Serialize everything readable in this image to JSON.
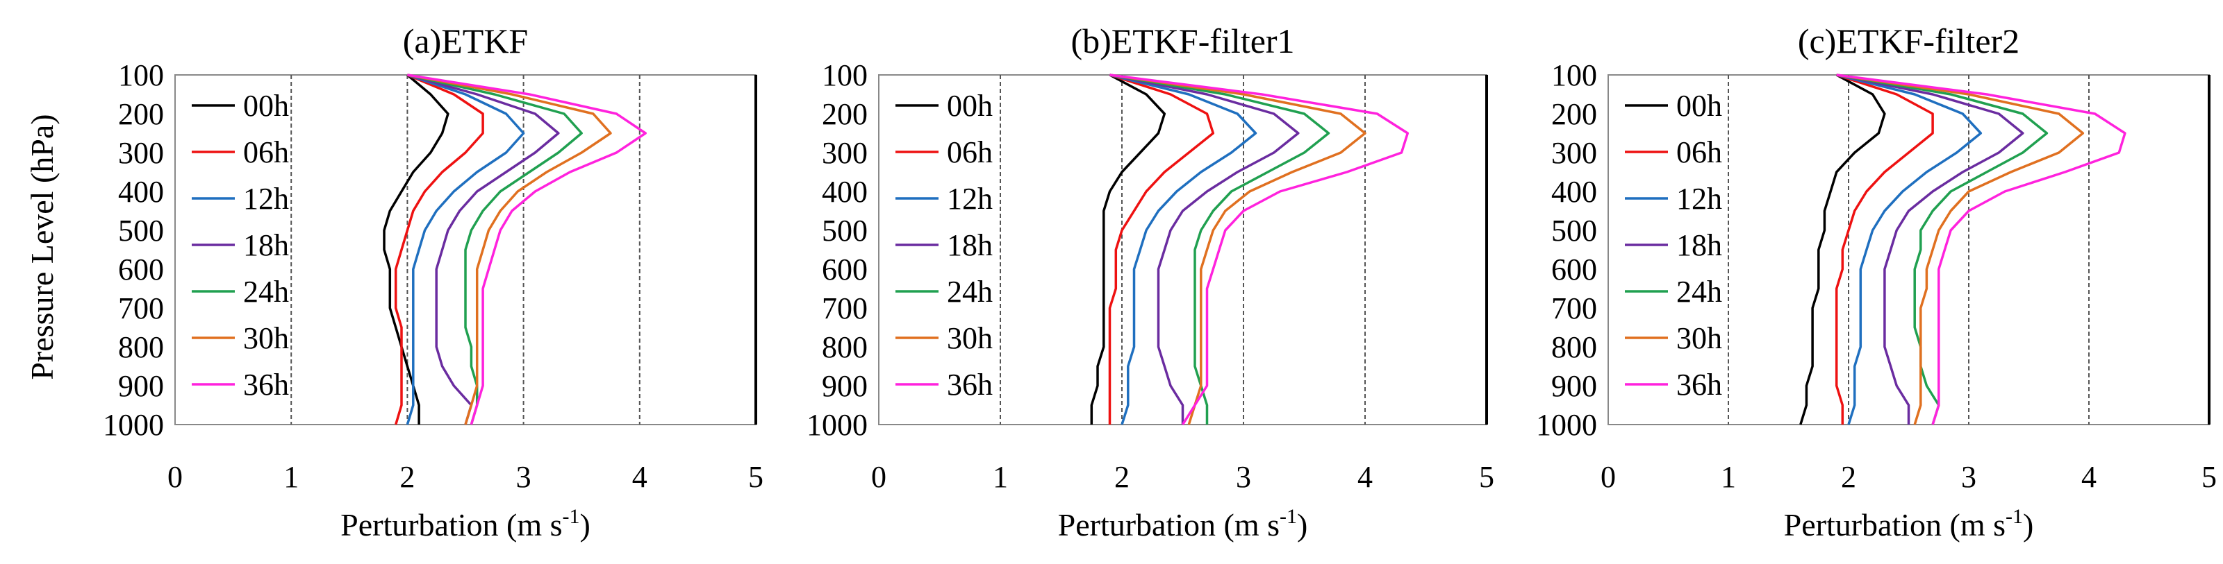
{
  "figure": {
    "y_axis_label": "Pressure Level (hPa)"
  },
  "chart_data": [
    {
      "type": "line",
      "title": "(a)ETKF",
      "xlabel_main": "Perturbation (m s",
      "xlabel_sup": "-1",
      "xlabel_close": ")",
      "ylabel": "Pressure Level (hPa)",
      "xlim": [
        0,
        5
      ],
      "ylim": [
        100,
        1000
      ],
      "x_ticks": [
        "0",
        "1",
        "2",
        "3",
        "4",
        "5"
      ],
      "y_ticks": [
        "100",
        "200",
        "300",
        "400",
        "500",
        "600",
        "700",
        "800",
        "900",
        "1000"
      ],
      "y": [
        100,
        150,
        200,
        250,
        300,
        350,
        400,
        450,
        500,
        550,
        600,
        650,
        700,
        750,
        800,
        850,
        900,
        950,
        1000
      ],
      "series": [
        {
          "name": "00h",
          "color": "#000000",
          "values": [
            2.0,
            2.2,
            2.35,
            2.3,
            2.2,
            2.05,
            1.95,
            1.85,
            1.8,
            1.8,
            1.85,
            1.85,
            1.85,
            1.9,
            1.95,
            2.0,
            2.05,
            2.1,
            2.1
          ]
        },
        {
          "name": "06h",
          "color": "#ee1111",
          "values": [
            2.0,
            2.4,
            2.65,
            2.65,
            2.5,
            2.3,
            2.15,
            2.05,
            2.0,
            1.95,
            1.9,
            1.9,
            1.9,
            1.95,
            1.95,
            1.95,
            1.95,
            1.95,
            1.9
          ]
        },
        {
          "name": "12h",
          "color": "#1f6fbf",
          "values": [
            2.0,
            2.5,
            2.85,
            3.0,
            2.85,
            2.6,
            2.4,
            2.25,
            2.15,
            2.1,
            2.05,
            2.05,
            2.05,
            2.05,
            2.05,
            2.05,
            2.05,
            2.05,
            2.0
          ]
        },
        {
          "name": "18h",
          "color": "#6a2ca0",
          "values": [
            2.0,
            2.6,
            3.1,
            3.3,
            3.1,
            2.85,
            2.6,
            2.45,
            2.35,
            2.3,
            2.25,
            2.25,
            2.25,
            2.25,
            2.25,
            2.3,
            2.4,
            2.55,
            2.5
          ]
        },
        {
          "name": "24h",
          "color": "#20a050",
          "values": [
            2.0,
            2.75,
            3.35,
            3.5,
            3.3,
            3.05,
            2.8,
            2.65,
            2.55,
            2.5,
            2.5,
            2.5,
            2.5,
            2.5,
            2.55,
            2.55,
            2.6,
            2.6,
            2.55
          ]
        },
        {
          "name": "30h",
          "color": "#e07020",
          "values": [
            2.0,
            2.9,
            3.6,
            3.75,
            3.5,
            3.2,
            2.95,
            2.8,
            2.7,
            2.65,
            2.6,
            2.6,
            2.6,
            2.6,
            2.6,
            2.6,
            2.6,
            2.55,
            2.5
          ]
        },
        {
          "name": "36h",
          "color": "#ff22dd",
          "values": [
            2.0,
            3.05,
            3.8,
            4.05,
            3.8,
            3.4,
            3.1,
            2.9,
            2.8,
            2.75,
            2.7,
            2.65,
            2.65,
            2.65,
            2.65,
            2.65,
            2.65,
            2.6,
            2.55
          ]
        }
      ]
    },
    {
      "type": "line",
      "title": "(b)ETKF-filter1",
      "xlabel_main": "Perturbation (m s",
      "xlabel_sup": "-1",
      "xlabel_close": ")",
      "ylabel": "Pressure Level (hPa)",
      "xlim": [
        0,
        5
      ],
      "ylim": [
        100,
        1000
      ],
      "x_ticks": [
        "0",
        "1",
        "2",
        "3",
        "4",
        "5"
      ],
      "y_ticks": [
        "100",
        "200",
        "300",
        "400",
        "500",
        "600",
        "700",
        "800",
        "900",
        "1000"
      ],
      "y": [
        100,
        150,
        200,
        250,
        300,
        350,
        400,
        450,
        500,
        550,
        600,
        650,
        700,
        750,
        800,
        850,
        900,
        950,
        1000
      ],
      "series": [
        {
          "name": "00h",
          "color": "#000000",
          "values": [
            1.9,
            2.2,
            2.35,
            2.3,
            2.15,
            2.0,
            1.9,
            1.85,
            1.85,
            1.85,
            1.85,
            1.85,
            1.85,
            1.85,
            1.85,
            1.8,
            1.8,
            1.75,
            1.75
          ]
        },
        {
          "name": "06h",
          "color": "#ee1111",
          "values": [
            1.9,
            2.4,
            2.7,
            2.75,
            2.55,
            2.35,
            2.2,
            2.1,
            2.0,
            1.95,
            1.95,
            1.95,
            1.9,
            1.9,
            1.9,
            1.9,
            1.9,
            1.9,
            1.9
          ]
        },
        {
          "name": "12h",
          "color": "#1f6fbf",
          "values": [
            1.9,
            2.55,
            2.95,
            3.1,
            2.9,
            2.65,
            2.45,
            2.3,
            2.2,
            2.15,
            2.1,
            2.1,
            2.1,
            2.1,
            2.1,
            2.05,
            2.05,
            2.05,
            2.0
          ]
        },
        {
          "name": "18h",
          "color": "#6a2ca0",
          "values": [
            1.9,
            2.7,
            3.25,
            3.45,
            3.25,
            2.95,
            2.7,
            2.5,
            2.4,
            2.35,
            2.3,
            2.3,
            2.3,
            2.3,
            2.3,
            2.35,
            2.4,
            2.5,
            2.5
          ]
        },
        {
          "name": "24h",
          "color": "#20a050",
          "values": [
            1.9,
            2.85,
            3.5,
            3.7,
            3.5,
            3.2,
            2.9,
            2.75,
            2.65,
            2.6,
            2.6,
            2.6,
            2.6,
            2.6,
            2.6,
            2.6,
            2.65,
            2.7,
            2.7
          ]
        },
        {
          "name": "30h",
          "color": "#e07020",
          "values": [
            1.9,
            3.0,
            3.8,
            4.0,
            3.8,
            3.4,
            3.05,
            2.85,
            2.75,
            2.7,
            2.65,
            2.65,
            2.65,
            2.65,
            2.65,
            2.65,
            2.65,
            2.6,
            2.55
          ]
        },
        {
          "name": "36h",
          "color": "#ff22dd",
          "values": [
            1.9,
            3.15,
            4.1,
            4.35,
            4.3,
            3.85,
            3.3,
            3.0,
            2.85,
            2.8,
            2.75,
            2.7,
            2.7,
            2.7,
            2.7,
            2.7,
            2.7,
            2.6,
            2.5
          ]
        }
      ]
    },
    {
      "type": "line",
      "title": "(c)ETKF-filter2",
      "xlabel_main": "Perturbation (m s",
      "xlabel_sup": "-1",
      "xlabel_close": ")",
      "ylabel": "Pressure Level (hPa)",
      "xlim": [
        0,
        5
      ],
      "ylim": [
        100,
        1000
      ],
      "x_ticks": [
        "0",
        "1",
        "2",
        "3",
        "4",
        "5"
      ],
      "y_ticks": [
        "100",
        "200",
        "300",
        "400",
        "500",
        "600",
        "700",
        "800",
        "900",
        "1000"
      ],
      "y": [
        100,
        150,
        200,
        250,
        300,
        350,
        400,
        450,
        500,
        550,
        600,
        650,
        700,
        750,
        800,
        850,
        900,
        950,
        1000
      ],
      "series": [
        {
          "name": "00h",
          "color": "#000000",
          "values": [
            1.9,
            2.2,
            2.3,
            2.25,
            2.05,
            1.9,
            1.85,
            1.8,
            1.8,
            1.75,
            1.75,
            1.75,
            1.7,
            1.7,
            1.7,
            1.7,
            1.65,
            1.65,
            1.6
          ]
        },
        {
          "name": "06h",
          "color": "#ee1111",
          "values": [
            1.9,
            2.4,
            2.7,
            2.7,
            2.5,
            2.3,
            2.15,
            2.05,
            2.0,
            1.95,
            1.95,
            1.9,
            1.9,
            1.9,
            1.9,
            1.9,
            1.9,
            1.95,
            1.95
          ]
        },
        {
          "name": "12h",
          "color": "#1f6fbf",
          "values": [
            1.9,
            2.55,
            2.95,
            3.1,
            2.9,
            2.65,
            2.45,
            2.3,
            2.2,
            2.15,
            2.1,
            2.1,
            2.1,
            2.1,
            2.1,
            2.05,
            2.05,
            2.05,
            2.0
          ]
        },
        {
          "name": "18h",
          "color": "#6a2ca0",
          "values": [
            1.9,
            2.7,
            3.25,
            3.45,
            3.25,
            2.95,
            2.7,
            2.5,
            2.4,
            2.35,
            2.3,
            2.3,
            2.3,
            2.3,
            2.3,
            2.35,
            2.4,
            2.5,
            2.5
          ]
        },
        {
          "name": "24h",
          "color": "#20a050",
          "values": [
            1.9,
            2.85,
            3.45,
            3.65,
            3.45,
            3.15,
            2.85,
            2.7,
            2.6,
            2.6,
            2.55,
            2.55,
            2.55,
            2.55,
            2.6,
            2.6,
            2.65,
            2.75,
            2.7
          ]
        },
        {
          "name": "30h",
          "color": "#e07020",
          "values": [
            1.9,
            3.0,
            3.75,
            3.95,
            3.75,
            3.35,
            3.0,
            2.85,
            2.75,
            2.7,
            2.65,
            2.65,
            2.6,
            2.6,
            2.6,
            2.6,
            2.6,
            2.6,
            2.55
          ]
        },
        {
          "name": "36h",
          "color": "#ff22dd",
          "values": [
            1.9,
            3.15,
            4.05,
            4.3,
            4.25,
            3.8,
            3.3,
            3.0,
            2.85,
            2.8,
            2.75,
            2.75,
            2.75,
            2.75,
            2.75,
            2.75,
            2.75,
            2.75,
            2.7
          ]
        }
      ]
    }
  ]
}
